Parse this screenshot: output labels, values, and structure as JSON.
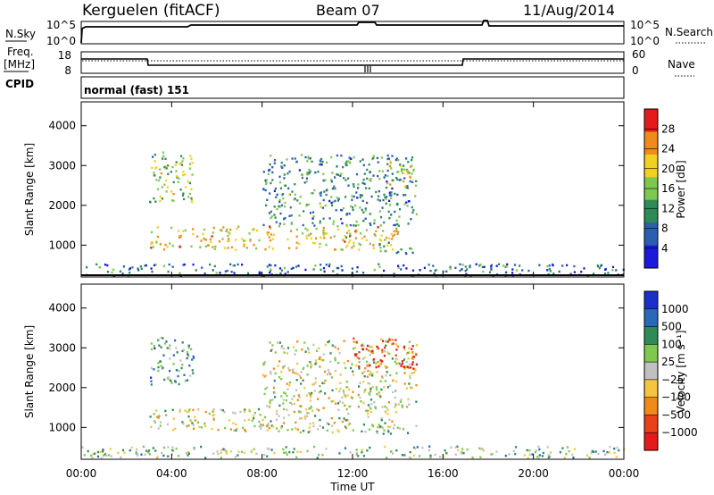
{
  "header": {
    "station": "Kerguelen (fitACF)",
    "beam": "Beam 07",
    "date": "11/Aug/2014"
  },
  "noise_panel": {
    "left_label": "N.Sky",
    "left_ticks": [
      "10^5",
      "10^0"
    ],
    "right_label": "N.Search",
    "right_ticks": [
      "10^5",
      "10^0"
    ]
  },
  "freq_panel": {
    "left_label_1": "Freq.",
    "left_label_2": "[MHz]",
    "left_ticks": [
      "18",
      "8"
    ],
    "right_label": "Nave",
    "right_ticks": [
      "60",
      "0"
    ]
  },
  "cpid_panel": {
    "label": "CPID",
    "value": "normal (fast) 151"
  },
  "chart_data": [
    {
      "type": "heatmap",
      "name": "power",
      "ylabel": "Slant Range [km]",
      "yticks": [
        1000,
        2000,
        3000,
        4000
      ],
      "ylim": [
        200,
        4600
      ],
      "xlim": [
        0,
        24
      ],
      "colorbar_label": "Power [dB]",
      "colorbar_ticks": [
        4,
        8,
        12,
        16,
        20,
        24,
        28
      ],
      "colorbar_range": [
        0,
        32
      ],
      "colors": [
        "#1a1ad8",
        "#2a5fb0",
        "#2e8b57",
        "#7ec850",
        "#f2d022",
        "#f08a1a",
        "#e51a1a"
      ],
      "regions": [
        {
          "t0": 3.0,
          "t1": 14.0,
          "r0": 900,
          "r1": 1500,
          "level": 0.65
        },
        {
          "t0": 3.0,
          "t1": 5.0,
          "r0": 2100,
          "r1": 3400,
          "level": 0.5
        },
        {
          "t0": 8.0,
          "t1": 14.8,
          "r0": 1500,
          "r1": 3300,
          "level": 0.35
        },
        {
          "t0": 13.5,
          "t1": 14.8,
          "r0": 2500,
          "r1": 3100,
          "level": 0.6
        },
        {
          "t0": 13.0,
          "t1": 14.8,
          "r0": 800,
          "r1": 1100,
          "level": 0.4
        },
        {
          "t0": 0.0,
          "t1": 24.0,
          "r0": 250,
          "r1": 550,
          "level": 0.25
        }
      ]
    },
    {
      "type": "heatmap",
      "name": "velocity",
      "ylabel": "Slant Range [km]",
      "yticks": [
        1000,
        2000,
        3000,
        4000
      ],
      "ylim": [
        200,
        4600
      ],
      "xlim": [
        0,
        24
      ],
      "xticks": [
        "00:00",
        "04:00",
        "08:00",
        "12:00",
        "16:00",
        "20:00",
        "00:00"
      ],
      "xlabel": "Time UT",
      "colorbar_label": "Velocity [m s⁻¹]",
      "colorbar_ticks": [
        "1000",
        "500",
        "100",
        "25",
        "−25",
        "−100",
        "−500",
        "−1000"
      ],
      "colors": [
        "#1a30c8",
        "#2a68b8",
        "#2e8b57",
        "#7ec850",
        "#c0c0c0",
        "#f5c542",
        "#f08a1a",
        "#e8421a",
        "#e51a1a"
      ],
      "regions": [
        {
          "t0": 3.0,
          "t1": 14.0,
          "r0": 900,
          "r1": 1500,
          "level": 0.5
        },
        {
          "t0": 8.0,
          "t1": 14.8,
          "r0": 1500,
          "r1": 3200,
          "level": 0.5
        },
        {
          "t0": 3.0,
          "t1": 5.0,
          "r0": 2100,
          "r1": 3300,
          "level": 0.3
        },
        {
          "t0": 12.0,
          "t1": 14.8,
          "r0": 2500,
          "r1": 3300,
          "level": 0.85
        },
        {
          "t0": 13.0,
          "t1": 14.8,
          "r0": 800,
          "r1": 1100,
          "level": 0.35
        },
        {
          "t0": 0.0,
          "t1": 24.0,
          "r0": 250,
          "r1": 550,
          "level": 0.4
        }
      ]
    }
  ]
}
